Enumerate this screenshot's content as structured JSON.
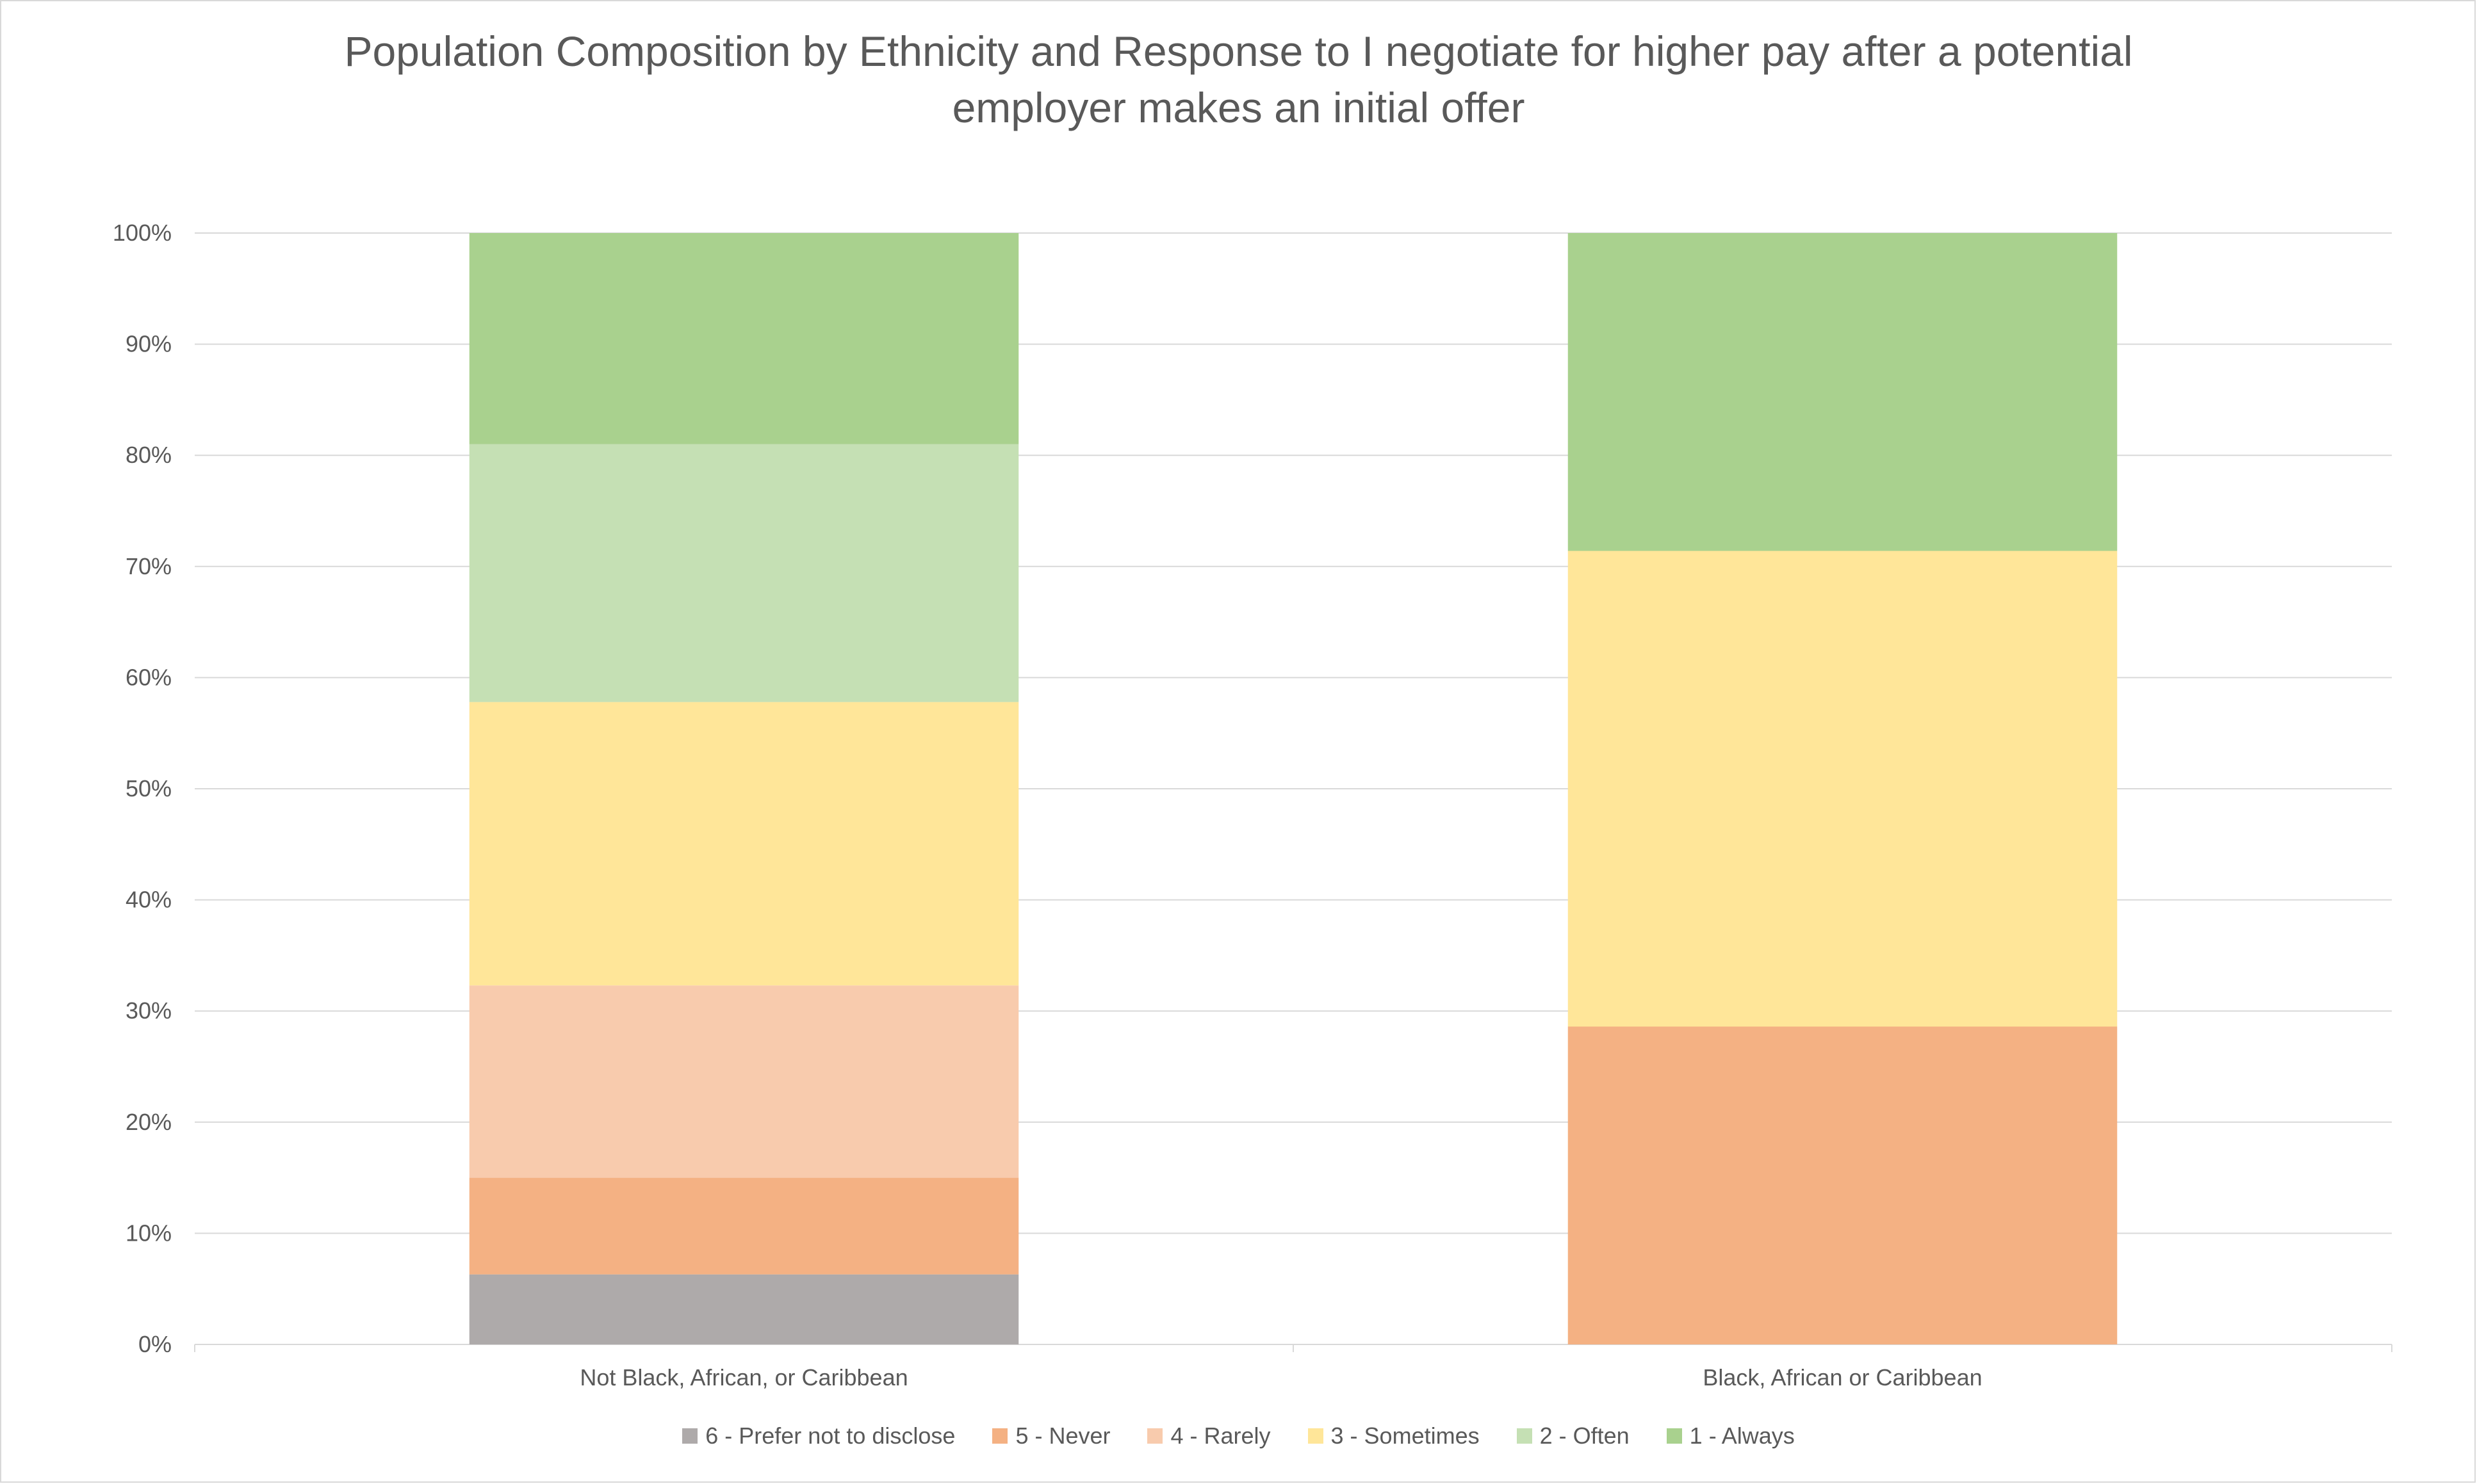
{
  "chart_data": {
    "type": "bar",
    "stacked": true,
    "title_line1": "Population Composition by Ethnicity and Response to I negotiate for higher pay after a potential",
    "title_line2": "employer makes an initial offer",
    "categories": [
      "Not Black, African, or Caribbean",
      "Black, African or Caribbean"
    ],
    "ylim": [
      0,
      100
    ],
    "yticks": [
      "0%",
      "10%",
      "20%",
      "30%",
      "40%",
      "50%",
      "60%",
      "70%",
      "80%",
      "90%",
      "100%"
    ],
    "grid": true,
    "legend_position": "bottom",
    "series": [
      {
        "name": "6 - Prefer not to disclose",
        "color": "#aeaaaa",
        "values": [
          6.3,
          0
        ]
      },
      {
        "name": "5 - Never",
        "color": "#f4b183",
        "values": [
          8.7,
          28.6
        ]
      },
      {
        "name": "4 - Rarely",
        "color": "#f8cbad",
        "values": [
          17.3,
          0
        ]
      },
      {
        "name": "3 - Sometimes",
        "color": "#ffe699",
        "values": [
          25.5,
          42.8
        ]
      },
      {
        "name": "2 - Often",
        "color": "#c5e0b4",
        "values": [
          23.2,
          0
        ]
      },
      {
        "name": "1 - Always",
        "color": "#a9d18e",
        "values": [
          19.0,
          28.6
        ]
      }
    ]
  }
}
